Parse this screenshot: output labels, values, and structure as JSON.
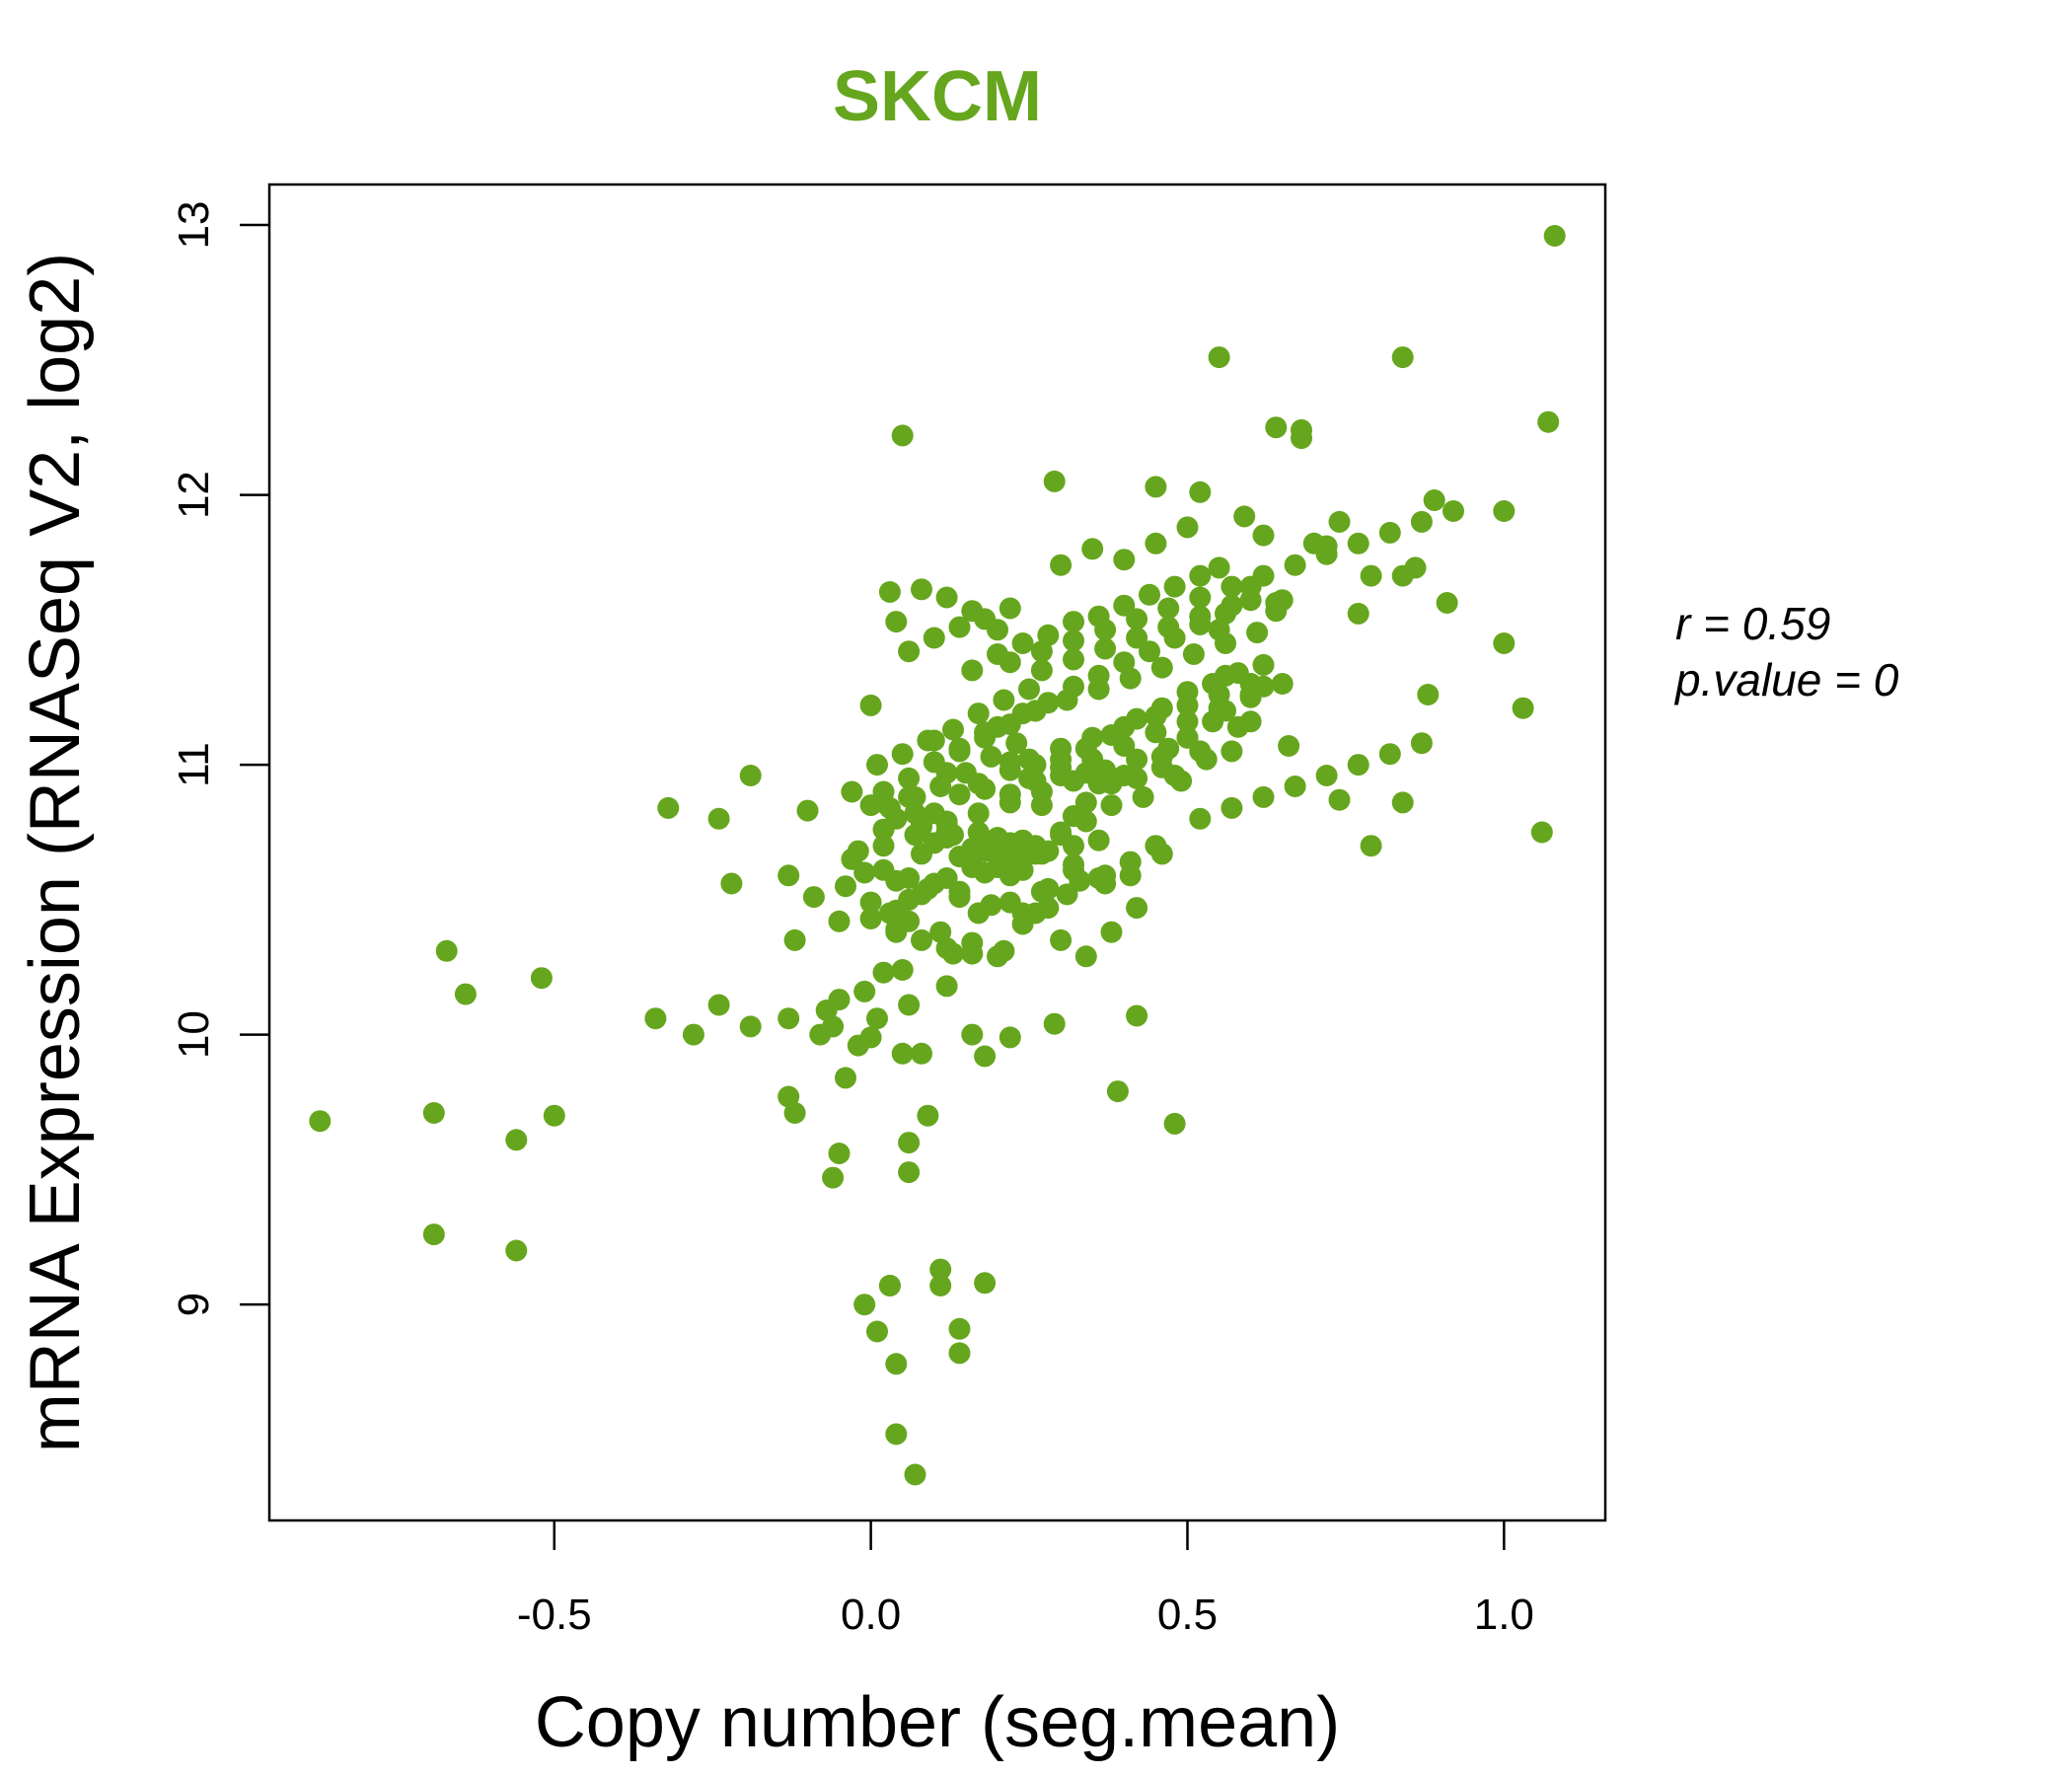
{
  "chart_data": {
    "type": "scatter",
    "title": "SKCM",
    "title_color": "#66a61e",
    "point_color": "#66a61e",
    "xlabel": "Copy number (seg.mean)",
    "ylabel": "mRNA Expression (RNASeq V2, log2)",
    "xlim": [
      -0.95,
      1.16
    ],
    "ylim": [
      8.2,
      13.15
    ],
    "x_ticks": [
      -0.5,
      0.0,
      0.5,
      1.0
    ],
    "x_tick_labels": [
      "-0.5",
      "0.0",
      "0.5",
      "1.0"
    ],
    "y_ticks": [
      9,
      10,
      11,
      12,
      13
    ],
    "y_tick_labels": [
      "9",
      "10",
      "11",
      "12",
      "13"
    ],
    "grid": false,
    "legend": "none",
    "annotations": {
      "r_label": "r = 0.59",
      "p_label": "p.value = 0"
    },
    "x": [
      -0.87,
      -0.67,
      -0.64,
      -0.52,
      -0.69,
      -0.56,
      -0.5,
      -0.69,
      -0.56,
      -0.32,
      -0.24,
      -0.22,
      -0.19,
      -0.34,
      -0.28,
      -0.24,
      -0.19,
      -0.13,
      -0.12,
      -0.13,
      -0.13,
      -0.12,
      -0.05,
      -0.06,
      0.06,
      0.06,
      0.03,
      0.04,
      0.04,
      0.05,
      -0.01,
      0.01,
      0.03,
      0.05,
      0.07,
      0.09,
      0.11,
      0.11,
      0.14,
      0.14,
      0.18,
      0.04,
      0.03,
      0.29,
      0.55,
      0.64,
      0.68,
      0.68,
      0.84,
      1.08,
      1.07,
      0.45,
      0.52,
      0.59,
      0.62,
      0.74,
      0.72,
      0.89,
      1.0,
      0.77,
      0.84,
      0.86,
      0.91,
      0.79,
      0.88,
      1.0,
      1.03,
      1.06,
      0.74,
      0.79,
      0.84,
      0.66,
      0.64,
      0.64,
      0.55,
      0.56,
      0.62,
      0.6,
      0.57,
      0.5,
      0.53,
      0.49,
      0.45,
      0.41,
      0.42,
      0.38,
      0.39,
      0.48,
      0.42,
      0.37,
      0.32,
      0.3,
      0.34,
      0.29,
      0.22,
      0.18,
      0.16,
      0.12,
      0.13,
      0.05,
      0.06,
      0.08,
      0.05,
      0.06,
      0.04,
      0.02,
      0.01,
      0.0,
      -0.01,
      -0.02,
      -0.04,
      -0.05,
      -0.06,
      -0.07,
      -0.08,
      -0.09,
      -0.1,
      -0.05,
      -0.03,
      0.0,
      0.02,
      0.03,
      0.06,
      0.08,
      0.1,
      0.12,
      0.14,
      0.16,
      0.18,
      0.2,
      0.22,
      0.24,
      0.26,
      0.28,
      0.3,
      0.32,
      0.34,
      0.36,
      0.38,
      0.4,
      0.43,
      0.46,
      0.48,
      0.5,
      0.52,
      0.54,
      0.56,
      0.58,
      0.6,
      0.62,
      0.1,
      0.14,
      0.18,
      0.22,
      0.26,
      0.3,
      0.34,
      0.38,
      0.42,
      0.46,
      0.5,
      0.54,
      0.58,
      0.2,
      0.24,
      0.28,
      0.32,
      0.36,
      0.4,
      0.44,
      0.48,
      0.52,
      0.56,
      0.6,
      0.16,
      0.2,
      0.24,
      0.28,
      0.32,
      0.36,
      0.4,
      0.44,
      0.48,
      0.52,
      0.1,
      0.14,
      0.18,
      0.22,
      0.26,
      0.3,
      0.34,
      0.38,
      0.42,
      0.46,
      0.0,
      0.04,
      0.08,
      0.12,
      0.16,
      0.2,
      0.24,
      0.28,
      0.32,
      0.36,
      -0.02,
      0.02,
      0.06,
      0.1,
      0.14,
      0.18,
      0.22,
      0.26,
      0.3,
      0.34,
      0.0,
      0.04,
      0.08,
      0.12,
      0.16,
      0.2,
      0.24,
      0.28,
      -0.04,
      0.0,
      0.04,
      0.08,
      0.12,
      0.16,
      0.2,
      0.24,
      0.02,
      0.06,
      0.1,
      0.14,
      0.18,
      0.22,
      0.26,
      0.01,
      0.05,
      0.09,
      0.13,
      0.17,
      0.21,
      0.25,
      0.03,
      0.07,
      0.11,
      0.15,
      0.19,
      0.23,
      0.06,
      0.1,
      0.14,
      0.18,
      0.22,
      0.08,
      0.12,
      0.16,
      0.2,
      0.3,
      0.35,
      0.4,
      0.45,
      0.5,
      0.55,
      0.6,
      0.65,
      0.7,
      0.25,
      0.3,
      0.35,
      0.4,
      0.45,
      0.5,
      0.55,
      0.6,
      0.65,
      0.26,
      0.31,
      0.36,
      0.41,
      0.46,
      0.51,
      0.56,
      0.61,
      0.27,
      0.32,
      0.37,
      0.42,
      0.47,
      0.52,
      0.57,
      0.17,
      0.22,
      0.27,
      0.33,
      0.06,
      0.11,
      0.16,
      0.21,
      0.26,
      0.31,
      0.36,
      0.41,
      0.46,
      0.02,
      0.07,
      0.12,
      0.17,
      0.22,
      0.27,
      0.32,
      0.37,
      0.12,
      0.17,
      0.22,
      0.27,
      0.32,
      0.08,
      0.13,
      0.18,
      0.23,
      -0.01,
      0.04,
      0.09,
      0.14,
      0.19,
      0.24,
      -0.03,
      0.02,
      0.07,
      0.12,
      0.17,
      0.22,
      0.27,
      0.32,
      0.37,
      0.42,
      0.47,
      0.25,
      0.3,
      0.35,
      0.4,
      0.45,
      0.5,
      0.55,
      0.6,
      0.22,
      0.27,
      0.32,
      0.37,
      0.42,
      0.47,
      0.52,
      0.57,
      0.62,
      0.67,
      0.72,
      0.77,
      0.82,
      0.87,
      0.92,
      0.52,
      0.57,
      0.62,
      0.67,
      0.72,
      0.77,
      0.82,
      0.87
    ],
    "y": [
      9.68,
      10.31,
      10.15,
      10.21,
      9.71,
      9.61,
      9.7,
      9.26,
      9.2,
      10.84,
      10.8,
      10.56,
      10.96,
      10.06,
      10.0,
      10.11,
      10.03,
      10.59,
      10.35,
      10.06,
      9.77,
      9.71,
      9.56,
      9.47,
      9.6,
      9.49,
      9.07,
      8.78,
      8.52,
      12.22,
      9.0,
      8.9,
      9.07,
      9.93,
      8.37,
      9.7,
      9.13,
      9.07,
      8.91,
      8.82,
      9.08,
      11.53,
      11.64,
      12.05,
      12.51,
      12.25,
      12.24,
      12.21,
      12.51,
      12.96,
      12.27,
      12.03,
      12.01,
      11.92,
      11.85,
      11.9,
      11.81,
      11.98,
      11.94,
      11.56,
      11.7,
      11.73,
      11.6,
      11.7,
      11.26,
      11.45,
      11.21,
      10.75,
      10.87,
      10.7,
      10.86,
      11.07,
      11.6,
      11.57,
      11.5,
      11.33,
      11.37,
      11.16,
      11.05,
      11.1,
      11.02,
      10.94,
      10.7,
      10.59,
      10.07,
      10.38,
      9.79,
      9.67,
      10.47,
      10.56,
      10.61,
      10.35,
      10.29,
      10.04,
      9.99,
      9.92,
      10.0,
      10.18,
      10.3,
      10.24,
      10.11,
      9.93,
      10.43,
      10.5,
      10.38,
      10.23,
      10.06,
      9.99,
      10.16,
      9.96,
      9.84,
      10.13,
      10.03,
      10.09,
      10.0,
      10.51,
      10.83,
      10.42,
      10.9,
      11.22,
      10.76,
      10.45,
      10.88,
      10.67,
      10.71,
      10.75,
      10.66,
      10.62,
      10.68,
      10.73,
      10.59,
      10.61,
      10.67,
      10.54,
      10.74,
      10.81,
      10.86,
      10.93,
      10.85,
      10.96,
      10.88,
      11.03,
      10.96,
      11.1,
      11.05,
      11.16,
      11.2,
      11.14,
      11.25,
      11.29,
      10.82,
      10.89,
      10.91,
      10.98,
      10.94,
      11.02,
      11.06,
      11.11,
      11.17,
      11.21,
      11.27,
      11.3,
      11.34,
      11.14,
      11.19,
      11.23,
      11.29,
      11.33,
      11.38,
      11.42,
      11.47,
      11.52,
      11.56,
      11.61,
      11.35,
      11.41,
      11.45,
      11.48,
      11.53,
      11.55,
      11.59,
      11.63,
      11.66,
      11.7,
      11.09,
      11.06,
      11.12,
      11.01,
      11.0,
      10.96,
      10.97,
      10.93,
      10.95,
      10.99,
      10.85,
      10.8,
      10.77,
      10.73,
      10.69,
      10.62,
      10.65,
      10.68,
      10.7,
      10.72,
      10.68,
      10.61,
      10.58,
      10.56,
      10.53,
      10.6,
      10.64,
      10.7,
      10.75,
      10.79,
      10.43,
      10.39,
      10.35,
      10.32,
      10.3,
      10.29,
      10.41,
      10.47,
      10.55,
      10.49,
      10.46,
      10.52,
      10.58,
      10.63,
      10.68,
      10.72,
      10.9,
      10.95,
      11.01,
      11.05,
      11.1,
      11.15,
      11.2,
      11.0,
      11.04,
      11.09,
      11.13,
      11.19,
      11.24,
      11.28,
      10.84,
      10.88,
      10.92,
      10.97,
      11.03,
      11.08,
      11.42,
      11.47,
      11.51,
      11.54,
      11.58,
      11.65,
      11.62,
      11.57,
      11.5,
      11.74,
      11.8,
      11.76,
      11.82,
      11.88,
      11.73,
      11.66,
      11.61,
      11.82,
      10.95,
      10.99,
      11.02,
      11.07,
      11.12,
      11.16,
      11.21,
      11.26,
      11.3,
      11.2,
      11.24,
      11.28,
      11.32,
      11.36,
      11.41,
      11.45,
      11.49,
      11.35,
      11.39,
      11.43,
      11.47,
      11.51,
      11.55,
      11.59,
      10.45,
      10.49,
      10.53,
      10.57,
      10.42,
      10.38,
      10.34,
      10.31,
      10.45,
      10.52,
      10.58,
      10.64,
      10.67,
      10.86,
      10.82,
      10.79,
      10.75,
      10.71,
      10.67,
      10.63,
      10.59,
      10.97,
      10.93,
      10.89,
      10.85,
      10.81,
      10.78,
      10.74,
      10.7,
      10.66,
      10.6,
      10.57,
      10.54,
      10.51,
      10.48,
      10.45,
      10.65,
      10.7,
      10.74,
      10.78,
      10.82,
      10.86,
      10.9,
      10.94,
      10.98,
      11.02,
      11.06,
      11.02,
      11.06,
      11.1,
      11.14,
      11.18,
      11.22,
      11.26,
      11.3,
      11.38,
      11.42,
      11.46,
      11.5,
      11.54,
      11.58,
      11.62,
      11.66,
      11.7,
      11.74,
      11.78,
      11.82,
      11.86,
      11.9,
      11.94,
      10.8,
      10.84,
      10.88,
      10.92,
      10.96,
      11.0,
      11.04,
      11.08
    ]
  }
}
